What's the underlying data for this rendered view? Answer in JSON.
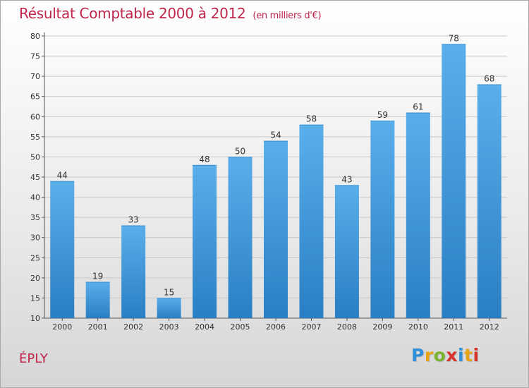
{
  "header": {
    "title": "Résultat Comptable 2000 à 2012",
    "subtitle": "(en milliers d'€)"
  },
  "footer": {
    "commune": "ÉPLY",
    "logo_letters": [
      "P",
      "r",
      "o",
      "x",
      "i",
      "t",
      "i"
    ],
    "logo_colors": [
      "#2f8fd8",
      "#e8a317",
      "#7ab32e",
      "#d9342b",
      "#2f8fd8",
      "#e8a317",
      "#d9342b"
    ]
  },
  "colors": {
    "title": "#c0264a",
    "bar_top": "#5aaeea",
    "bar_bottom": "#2a7fc4",
    "grid": "#c8c8c8",
    "axis": "#555555"
  },
  "chart_data": {
    "type": "bar",
    "title": "Résultat Comptable 2000 à 2012",
    "subtitle": "(en milliers d'€)",
    "xlabel": "",
    "ylabel": "",
    "ylim": [
      10,
      80
    ],
    "yticks": [
      10,
      15,
      20,
      25,
      30,
      35,
      40,
      45,
      50,
      55,
      60,
      65,
      70,
      75,
      80
    ],
    "grid": true,
    "categories": [
      "2000",
      "2001",
      "2002",
      "2003",
      "2004",
      "2005",
      "2006",
      "2007",
      "2008",
      "2009",
      "2010",
      "2011",
      "2012"
    ],
    "values": [
      44,
      19,
      33,
      15,
      48,
      50,
      54,
      58,
      43,
      59,
      61,
      78,
      68
    ]
  }
}
